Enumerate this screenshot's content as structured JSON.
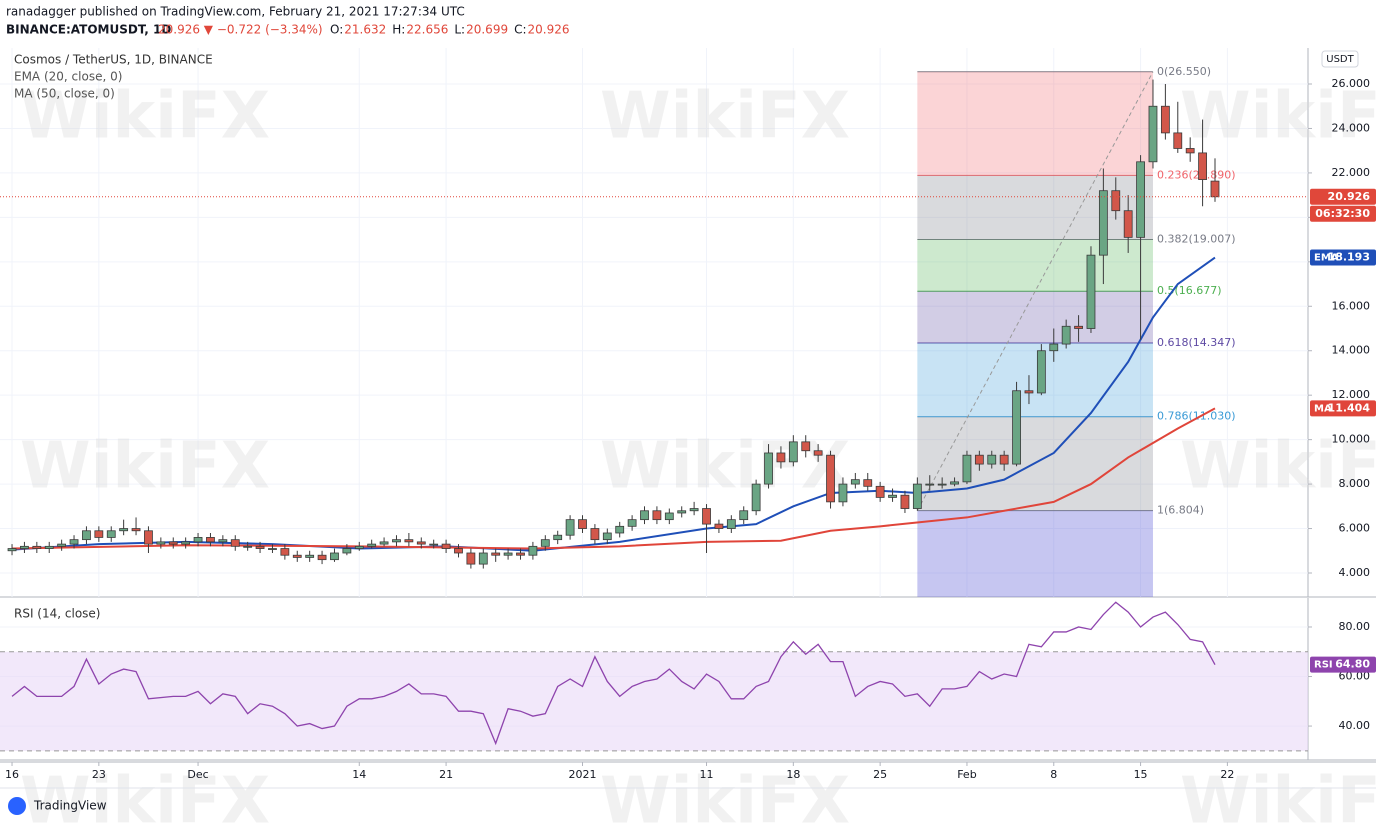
{
  "header": {
    "publisher": "ranadagger published on TradingView.com, February 21, 2021 17:27:34 UTC",
    "symbol": "BINANCE:ATOMUSDT, 1D",
    "quote": "20.926 ▼ −0.722 (−3.34%)",
    "ohlc": [
      {
        "k": "O:",
        "v": "21.632"
      },
      {
        "k": "H:",
        "v": "22.656"
      },
      {
        "k": "L:",
        "v": "20.699"
      },
      {
        "k": "C:",
        "v": "20.926"
      }
    ]
  },
  "watermark": "WikiFX",
  "footer": {
    "brand": "TradingView"
  },
  "chart_data": [
    {
      "type": "candlestick",
      "title": "Cosmos / TetherUS, 1D, BINANCE",
      "currency": "USDT",
      "countdown": "06:32:30",
      "up_color": "#6aa584",
      "down_color": "#d2574a",
      "price_line_color": "#e0473a",
      "grid": true,
      "x": [
        0,
        1,
        2,
        3,
        4,
        5,
        6,
        7,
        8,
        9,
        10,
        11,
        12,
        13,
        14,
        15,
        16,
        17,
        18,
        19,
        20,
        21,
        22,
        23,
        24,
        25,
        26,
        27,
        28,
        29,
        30,
        31,
        32,
        33,
        34,
        35,
        36,
        37,
        38,
        39,
        40,
        41,
        42,
        43,
        44,
        45,
        46,
        47,
        48,
        49,
        50,
        51,
        52,
        53,
        54,
        55,
        56,
        57,
        58,
        59,
        60,
        61,
        62,
        63,
        64,
        65,
        66,
        67,
        68,
        69,
        70,
        71,
        72,
        73,
        74,
        75,
        76,
        77,
        78,
        79,
        80,
        81,
        82,
        83,
        84,
        85,
        86,
        87,
        88,
        89,
        90,
        91,
        92,
        93,
        94,
        95,
        96,
        97
      ],
      "open": [
        5.0,
        5.1,
        5.2,
        5.1,
        5.2,
        5.3,
        5.5,
        5.9,
        5.6,
        5.9,
        6.0,
        5.9,
        5.3,
        5.4,
        5.3,
        5.4,
        5.6,
        5.4,
        5.5,
        5.2,
        5.2,
        5.1,
        5.1,
        4.8,
        4.7,
        4.8,
        4.6,
        4.9,
        5.1,
        5.2,
        5.3,
        5.4,
        5.5,
        5.4,
        5.3,
        5.3,
        5.1,
        4.9,
        4.4,
        4.9,
        4.8,
        4.9,
        4.8,
        5.2,
        5.5,
        5.7,
        6.4,
        6.0,
        5.5,
        5.8,
        6.1,
        6.4,
        6.8,
        6.4,
        6.7,
        6.8,
        6.9,
        6.2,
        6.0,
        6.4,
        6.8,
        8.0,
        9.4,
        9.0,
        9.9,
        9.5,
        9.3,
        7.2,
        8.0,
        8.2,
        7.9,
        7.4,
        7.5,
        6.9,
        8.0,
        8.0,
        8.0,
        8.1,
        9.3,
        8.9,
        9.3,
        8.9,
        12.2,
        12.1,
        14.0,
        14.3,
        15.1,
        15.0,
        18.3,
        21.2,
        20.3,
        19.1,
        22.5,
        25.0,
        23.8,
        23.1,
        22.9,
        21.632
      ],
      "high": [
        5.3,
        5.4,
        5.4,
        5.4,
        5.5,
        5.7,
        6.1,
        6.1,
        6.1,
        6.4,
        6.5,
        6.1,
        5.6,
        5.6,
        5.6,
        5.8,
        5.8,
        5.7,
        5.7,
        5.4,
        5.4,
        5.3,
        5.3,
        5.0,
        5.0,
        5.0,
        5.1,
        5.3,
        5.4,
        5.5,
        5.6,
        5.7,
        5.8,
        5.6,
        5.5,
        5.5,
        5.3,
        5.1,
        5.1,
        5.1,
        5.1,
        5.1,
        5.4,
        5.7,
        5.9,
        6.6,
        6.6,
        6.2,
        6.0,
        6.3,
        6.6,
        7.0,
        7.0,
        6.9,
        7.0,
        7.2,
        7.1,
        6.4,
        6.6,
        7.0,
        8.2,
        9.8,
        9.7,
        10.2,
        10.2,
        9.8,
        9.5,
        8.3,
        8.5,
        8.5,
        8.1,
        7.8,
        7.7,
        8.3,
        8.4,
        8.3,
        8.3,
        9.5,
        9.5,
        9.5,
        9.5,
        12.6,
        12.9,
        14.3,
        15.0,
        15.4,
        15.6,
        18.7,
        22.2,
        21.8,
        21.0,
        22.8,
        26.2,
        26.0,
        25.2,
        23.6,
        24.4,
        22.656
      ],
      "low": [
        4.8,
        4.9,
        4.9,
        4.9,
        5.0,
        5.1,
        5.3,
        5.4,
        5.4,
        5.7,
        5.7,
        4.9,
        5.1,
        5.1,
        5.1,
        5.2,
        5.2,
        5.2,
        5.0,
        5.0,
        4.9,
        4.9,
        4.6,
        4.5,
        4.5,
        4.4,
        4.5,
        4.8,
        5.0,
        5.1,
        5.2,
        5.2,
        5.2,
        5.1,
        5.1,
        4.9,
        4.7,
        4.2,
        4.2,
        4.5,
        4.6,
        4.6,
        4.6,
        5.0,
        5.3,
        5.5,
        5.8,
        5.3,
        5.3,
        5.6,
        5.9,
        6.2,
        6.2,
        6.2,
        6.5,
        6.6,
        4.9,
        5.8,
        5.8,
        6.2,
        6.6,
        7.8,
        8.7,
        8.8,
        9.2,
        9.0,
        6.9,
        7.0,
        7.8,
        7.7,
        7.2,
        7.2,
        6.7,
        6.8,
        7.7,
        7.8,
        7.9,
        8.0,
        8.6,
        8.7,
        8.6,
        8.8,
        11.6,
        12.0,
        13.5,
        14.1,
        14.4,
        14.8,
        17.0,
        19.9,
        18.4,
        14.5,
        22.2,
        23.5,
        22.9,
        22.5,
        20.5,
        20.699
      ],
      "close": [
        5.1,
        5.2,
        5.1,
        5.2,
        5.3,
        5.5,
        5.9,
        5.6,
        5.9,
        6.0,
        5.9,
        5.3,
        5.4,
        5.3,
        5.4,
        5.6,
        5.4,
        5.5,
        5.2,
        5.2,
        5.1,
        5.1,
        4.8,
        4.7,
        4.8,
        4.6,
        4.9,
        5.1,
        5.2,
        5.3,
        5.4,
        5.5,
        5.4,
        5.3,
        5.3,
        5.1,
        4.9,
        4.4,
        4.9,
        4.8,
        4.9,
        4.8,
        5.2,
        5.5,
        5.7,
        6.4,
        6.0,
        5.5,
        5.8,
        6.1,
        6.4,
        6.8,
        6.4,
        6.7,
        6.8,
        6.9,
        6.2,
        6.0,
        6.4,
        6.8,
        8.0,
        9.4,
        9.0,
        9.9,
        9.5,
        9.3,
        7.2,
        8.0,
        8.2,
        7.9,
        7.4,
        7.5,
        6.9,
        8.0,
        8.0,
        8.0,
        8.1,
        9.3,
        8.9,
        9.3,
        8.9,
        12.2,
        12.1,
        14.0,
        14.3,
        15.1,
        15.0,
        18.3,
        21.2,
        20.3,
        19.1,
        22.5,
        25.0,
        23.8,
        23.1,
        22.9,
        21.7,
        20.926
      ],
      "overlays": [
        {
          "name": "EMA (20, close, 0)",
          "tag": "EMA",
          "color": "#1f4fb8",
          "x": [
            0,
            7,
            14,
            21,
            28,
            35,
            42,
            49,
            56,
            60,
            63,
            66,
            70,
            73,
            77,
            80,
            84,
            87,
            90,
            92,
            94,
            97
          ],
          "values": [
            5.05,
            5.3,
            5.4,
            5.3,
            5.1,
            5.2,
            5.0,
            5.4,
            6.0,
            6.2,
            7.0,
            7.6,
            7.7,
            7.6,
            7.8,
            8.2,
            9.4,
            11.2,
            13.5,
            15.5,
            17.0,
            18.193
          ]
        },
        {
          "name": "MA (50, close, 0)",
          "tag": "MA",
          "color": "#e0453a",
          "x": [
            0,
            14,
            28,
            42,
            49,
            56,
            62,
            66,
            70,
            77,
            84,
            87,
            90,
            94,
            97
          ],
          "values": [
            5.1,
            5.25,
            5.2,
            5.1,
            5.2,
            5.4,
            5.45,
            5.9,
            6.1,
            6.5,
            7.2,
            8.0,
            9.2,
            10.5,
            11.404
          ]
        }
      ],
      "fib": {
        "x": [
          73,
          92
        ],
        "extension_color": "#5b5bd6",
        "levels": [
          {
            "value": 26.55,
            "label": "0(26.550)",
            "color": "#787b86"
          },
          {
            "value": 21.89,
            "label": "0.236(21.890)",
            "color": "#f0646a"
          },
          {
            "value": 19.007,
            "label": "0.382(19.007)",
            "color": "#787b86"
          },
          {
            "value": 16.677,
            "label": "0.5(16.677)",
            "color": "#4caf50"
          },
          {
            "value": 14.347,
            "label": "0.618(14.347)",
            "color": "#5e4aa3"
          },
          {
            "value": 11.03,
            "label": "0.786(11.030)",
            "color": "#3b9bd6"
          },
          {
            "value": 6.804,
            "label": "1(6.804)",
            "color": "#787b86"
          }
        ]
      },
      "xlim": [
        -0.97,
        104.5
      ],
      "xticks": [
        {
          "value": 0,
          "label": "16"
        },
        {
          "value": 7,
          "label": "23"
        },
        {
          "value": 15,
          "label": "Dec"
        },
        {
          "value": 28,
          "label": "14"
        },
        {
          "value": 35,
          "label": "21"
        },
        {
          "value": 46,
          "label": "2021"
        },
        {
          "value": 56,
          "label": "11"
        },
        {
          "value": 63,
          "label": "18"
        },
        {
          "value": 70,
          "label": "25"
        },
        {
          "value": 77,
          "label": "Feb"
        },
        {
          "value": 84,
          "label": "8"
        },
        {
          "value": 91,
          "label": "15"
        },
        {
          "value": 98,
          "label": "22"
        }
      ],
      "ylim": [
        2.92,
        27.62
      ],
      "yticks": [
        {
          "value": 4,
          "label": "4.000"
        },
        {
          "value": 6,
          "label": "6.000"
        },
        {
          "value": 8,
          "label": "8.000"
        },
        {
          "value": 10,
          "label": "10.000"
        },
        {
          "value": 12,
          "label": "12.000"
        },
        {
          "value": 14,
          "label": "14.000"
        },
        {
          "value": 16,
          "label": "16.000"
        },
        {
          "value": 18,
          "label": "18.000"
        },
        {
          "value": 20,
          "label": "20.000"
        },
        {
          "value": 22,
          "label": "22.000"
        },
        {
          "value": 24,
          "label": "24.000"
        },
        {
          "value": 26,
          "label": "26.000"
        }
      ]
    },
    {
      "type": "line",
      "title": "RSI (14, close)",
      "tag": "RSI",
      "tag_label": "64.80",
      "color": "#8e44ad",
      "band": [
        30,
        70
      ],
      "band_color": "#e9d9f7",
      "x": [
        0,
        1,
        2,
        4,
        5,
        6,
        7,
        8,
        9,
        10,
        11,
        13,
        14,
        15,
        16,
        17,
        18,
        19,
        20,
        21,
        22,
        23,
        24,
        25,
        26,
        27,
        28,
        29,
        30,
        31,
        32,
        33,
        34,
        35,
        36,
        37,
        38,
        39,
        40,
        41,
        42,
        43,
        44,
        45,
        46,
        47,
        48,
        49,
        50,
        51,
        52,
        53,
        54,
        55,
        56,
        57,
        58,
        59,
        60,
        61,
        62,
        63,
        64,
        65,
        66,
        67,
        68,
        69,
        70,
        71,
        72,
        73,
        74,
        75,
        76,
        77,
        78,
        79,
        80,
        81,
        82,
        83,
        84,
        85,
        86,
        87,
        88,
        89,
        90,
        91,
        92,
        93,
        94,
        95,
        96,
        97
      ],
      "values": [
        52,
        56,
        52,
        52,
        56,
        67,
        57,
        61,
        63,
        62,
        51,
        52,
        52,
        54,
        49,
        53,
        52,
        45,
        49,
        48,
        45,
        40,
        41,
        39,
        40,
        48,
        51,
        51,
        52,
        54,
        57,
        53,
        53,
        52,
        46,
        46,
        45,
        33,
        47,
        46,
        44,
        45,
        56,
        59,
        56,
        68,
        58,
        52,
        56,
        58,
        59,
        63,
        58,
        55,
        61,
        58,
        51,
        51,
        56,
        58,
        68,
        74,
        69,
        73,
        66,
        66,
        52,
        56,
        58,
        57,
        52,
        53,
        48,
        55,
        55,
        56,
        62,
        59,
        61,
        60,
        73,
        72,
        78,
        78,
        80,
        79,
        85,
        90,
        86,
        80,
        84,
        86,
        81,
        75,
        74,
        64.8
      ],
      "xlim": [
        -0.97,
        104.5
      ],
      "ylim": [
        26.3,
        91.7
      ],
      "yticks": [
        {
          "value": 40,
          "label": "40.00"
        },
        {
          "value": 60,
          "label": "60.00"
        },
        {
          "value": 80,
          "label": "80.00"
        }
      ]
    }
  ]
}
